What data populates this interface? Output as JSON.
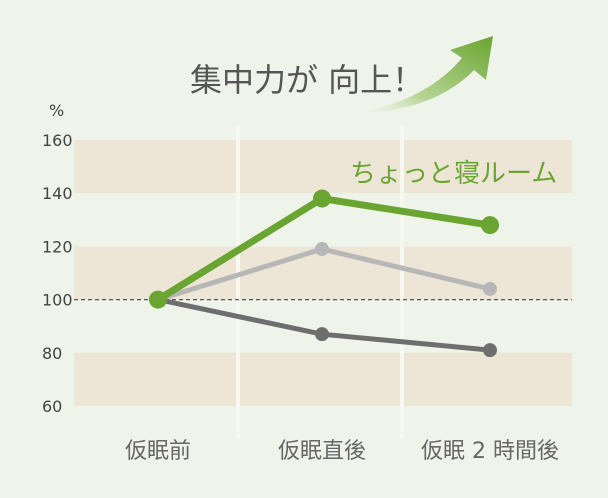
{
  "chart_data": {
    "type": "line",
    "title": "集中力が 向上！",
    "ylabel": "%",
    "ylim": [
      60,
      160
    ],
    "yticks": [
      60,
      80,
      100,
      120,
      140,
      160
    ],
    "categories": [
      "仮眠前",
      "仮眠直後",
      "仮眠 2 時間後"
    ],
    "baseline": 100,
    "series": [
      {
        "name": "ちょっと寝ルーム",
        "values": [
          100,
          138,
          128
        ],
        "color": "#6aa531"
      },
      {
        "name": "",
        "values": [
          100,
          119,
          104
        ],
        "color": "#b7b7b7"
      },
      {
        "name": "",
        "values": [
          100,
          87,
          81
        ],
        "color": "#6e6e6e"
      }
    ],
    "colors": {
      "background": "#eef4ea",
      "band": "#ede6d6",
      "arrow": "#6aa531"
    }
  }
}
